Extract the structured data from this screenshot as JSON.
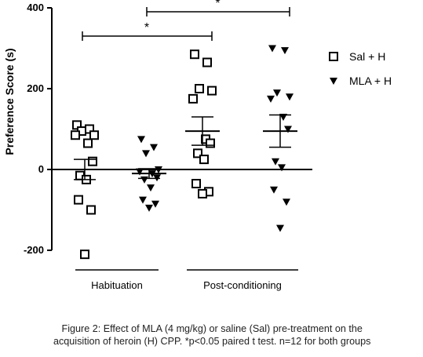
{
  "chart_data": {
    "type": "scatter",
    "ylabel": "Preference Score (s)",
    "ylim": [
      -200,
      400
    ],
    "yticks": [
      -200,
      0,
      200,
      400
    ],
    "categories": [
      "Habituation",
      "Post-conditioning"
    ],
    "legend": {
      "placement": "right"
    },
    "series": [
      {
        "name": "Sal + H",
        "marker": "open-square",
        "color": "#000000",
        "groups": [
          {
            "category": "Habituation",
            "values": [
              110,
              100,
              95,
              85,
              85,
              65,
              20,
              -15,
              -25,
              -75,
              -100,
              -210
            ],
            "mean": 0,
            "sem": 25
          },
          {
            "category": "Post-conditioning",
            "values": [
              285,
              265,
              200,
              195,
              175,
              75,
              65,
              40,
              25,
              -35,
              -55,
              -60
            ],
            "mean": 95,
            "sem": 35
          }
        ]
      },
      {
        "name": "MLA + H",
        "marker": "filled-down-triangle",
        "color": "#000000",
        "groups": [
          {
            "category": "Habituation",
            "values": [
              75,
              55,
              40,
              0,
              -5,
              -10,
              -20,
              -25,
              -45,
              -75,
              -85,
              -95
            ],
            "mean": -10,
            "sem": 12
          },
          {
            "category": "Post-conditioning",
            "values": [
              300,
              295,
              190,
              180,
              175,
              130,
              100,
              20,
              5,
              -50,
              -80,
              -145
            ],
            "mean": 95,
            "sem": 40
          }
        ]
      }
    ],
    "annotations": [
      {
        "text": "*",
        "bracket_from": "Sal + H / Habituation",
        "bracket_to": "Sal + H / Post-conditioning"
      },
      {
        "text": "*",
        "bracket_from": "MLA + H / Habituation",
        "bracket_to": "MLA + H / Post-conditioning"
      }
    ]
  },
  "caption": {
    "line1": "Figure 2: Effect of MLA (4 mg/kg) or saline (Sal) pre-treatment on the",
    "line2": "acquisition of heroin (H) CPP. *p<0.05 paired t test. n=12 for both groups"
  }
}
